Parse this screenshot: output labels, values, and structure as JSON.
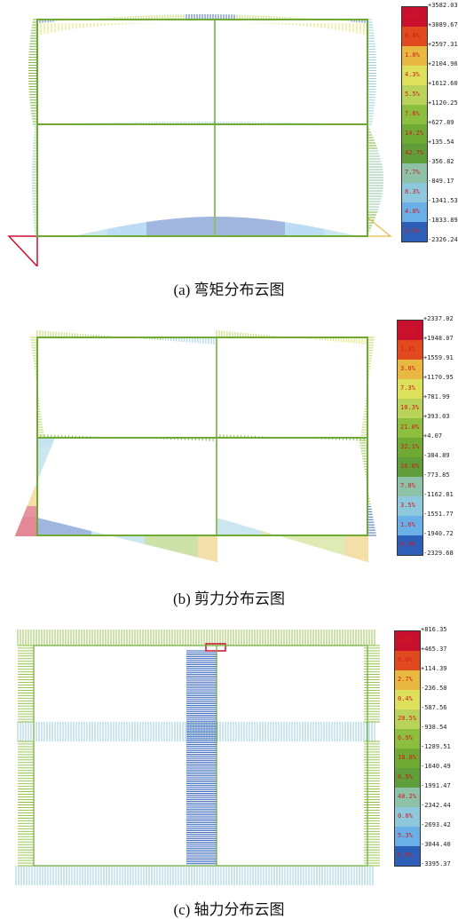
{
  "figures": [
    {
      "caption": "(a) 弯矩分布云图",
      "legend": {
        "values": [
          "+3582.03",
          "+3089.67",
          "+2597.31",
          "+2104.96",
          "+1612.60",
          "+1120.25",
          "+627.89",
          "+135.54",
          "-356.82",
          "-849.17",
          "-1341.53",
          "-1833.89",
          "-2326.24"
        ],
        "percents": [
          "0.5%",
          "0.8%",
          "1.0%",
          "4.3%",
          "5.5%",
          "7.6%",
          "14.2%",
          "42.7%",
          "7.7%",
          "8.3%",
          "4.0%",
          "3.3%"
        ]
      }
    },
    {
      "caption": "(b) 剪力分布云图",
      "legend": {
        "values": [
          "+2337.02",
          "+1948.07",
          "+1559.91",
          "+1170.95",
          "+781.99",
          "+393.03",
          "+4.07",
          "-384.89",
          "-773.85",
          "-1162.81",
          "-1551.77",
          "-1940.72",
          "-2329.68"
        ],
        "percents": [
          "0.5%",
          "1.3%",
          "3.8%",
          "7.3%",
          "10.3%",
          "21.0%",
          "32.1%",
          "10.6%",
          "7.0%",
          "3.5%",
          "1.6%",
          "0.9%"
        ]
      }
    },
    {
      "caption": "(c) 轴力分布云图",
      "legend": {
        "values": [
          "+816.35",
          "+465.37",
          "+114.39",
          "-236.58",
          "-587.56",
          "-938.54",
          "-1289.51",
          "-1640.49",
          "-1991.47",
          "-2342.44",
          "-2693.42",
          "-3044.40",
          "-3395.37"
        ],
        "percents": [
          "0.8%",
          "0.0%",
          "2.7%",
          "0.4%",
          "20.5%",
          "6.9%",
          "10.8%",
          "6.5%",
          "40.2%",
          "0.0%",
          "5.3%",
          "5.9%"
        ]
      }
    }
  ],
  "colors": {
    "scale": [
      "#c8102e",
      "#e04a1e",
      "#e9b840",
      "#dde05a",
      "#b9d35a",
      "#8dbf3e",
      "#6faa34",
      "#5f9e3a",
      "#8dc2a8",
      "#8ec8dc",
      "#6ab0e6",
      "#2e5fb8",
      "#1a3a8c"
    ],
    "frame": "#6faa34"
  }
}
